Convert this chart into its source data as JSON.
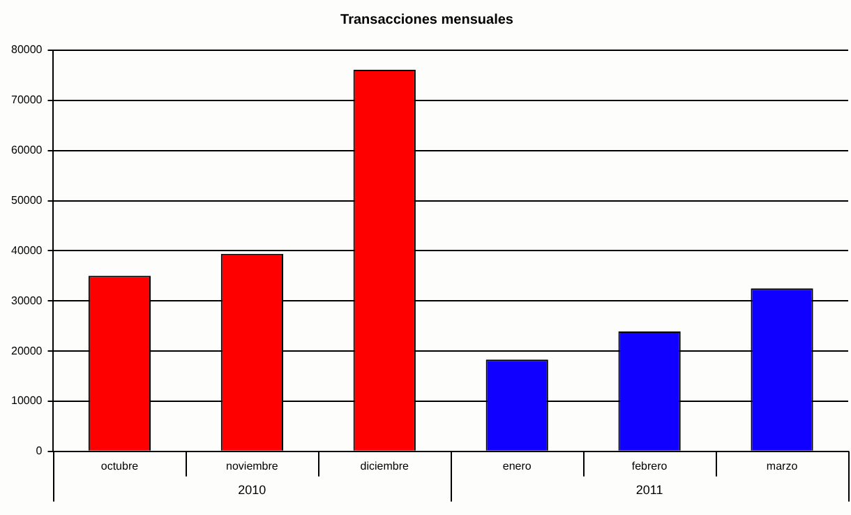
{
  "chart_data": {
    "type": "bar",
    "title": "Transacciones mensuales",
    "categories": [
      "octubre",
      "noviembre",
      "diciembre",
      "enero",
      "febrero",
      "marzo"
    ],
    "values": [
      35000,
      39400,
      76100,
      18300,
      23900,
      32500
    ],
    "colors": [
      "#ff0000",
      "#ff0000",
      "#ff0000",
      "#1000ff",
      "#1000ff",
      "#1000ff"
    ],
    "ylim": [
      0,
      80000
    ],
    "yticks": [
      0,
      10000,
      20000,
      30000,
      40000,
      50000,
      60000,
      70000,
      80000
    ],
    "grid": "y",
    "annotations": [
      "2010",
      "2011"
    ]
  }
}
